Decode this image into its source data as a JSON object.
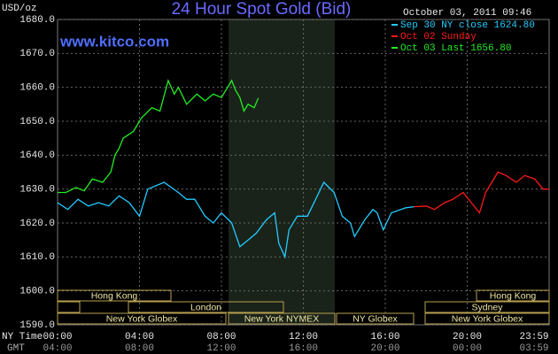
{
  "chart_data": {
    "type": "line",
    "title": "24 Hour Spot Gold (Bid)",
    "y_axis_label": "USD/oz",
    "date": "October 03, 2011 09:46",
    "watermark": "www.kitco.com",
    "x_axis_label": "NY Time",
    "x2_axis_label": "GMT",
    "xlim": [
      0,
      24
    ],
    "xticks": [
      {
        "value": 0,
        "label": "00:00"
      },
      {
        "value": 4,
        "label": "04:00"
      },
      {
        "value": 8,
        "label": "08:00"
      },
      {
        "value": 12,
        "label": "12:00"
      },
      {
        "value": 16,
        "label": "16:00"
      },
      {
        "value": 20,
        "label": "20:00"
      },
      {
        "value": 23.98,
        "label": "23:59"
      }
    ],
    "gmt_labels": [
      "04:00",
      "08:00",
      "12:00",
      "16:00",
      "20:00",
      "00:00",
      "03:59"
    ],
    "ylim": [
      1590,
      1680
    ],
    "yticks": [
      {
        "value": 1590,
        "label": "1590.0"
      },
      {
        "value": 1600,
        "label": "1600.0"
      },
      {
        "value": 1610,
        "label": "1610.0"
      },
      {
        "value": 1620,
        "label": "1620.0"
      },
      {
        "value": 1630,
        "label": "1630.0"
      },
      {
        "value": 1640,
        "label": "1640.0"
      },
      {
        "value": 1650,
        "label": "1650.0"
      },
      {
        "value": 1660,
        "label": "1660.0"
      },
      {
        "value": 1670,
        "label": "1670.0"
      },
      {
        "value": 1680,
        "label": "1680.0"
      }
    ],
    "grid": true,
    "legend": "top-right",
    "series": [
      {
        "name": "Sep 30 NY close 1624.80",
        "color": "#22ccff",
        "x": [
          0,
          0.5,
          1,
          1.5,
          2,
          2.5,
          3,
          3.5,
          4,
          4.4,
          5.2,
          5.9,
          6.3,
          6.7,
          7.2,
          7.6,
          8,
          8.5,
          8.9,
          9.3,
          9.7,
          10.2,
          10.6,
          10.8,
          11.1,
          11.3,
          11.7,
          12.2,
          12.6,
          13,
          13.5,
          13.9,
          14.3,
          14.5,
          15,
          15.4,
          15.6,
          15.9,
          16.3,
          17,
          17.4
        ],
        "values": [
          1626,
          1624,
          1627,
          1625,
          1626,
          1625,
          1628,
          1626,
          1622,
          1630,
          1632,
          1629,
          1627,
          1627,
          1622,
          1620,
          1623,
          1620,
          1613,
          1615,
          1617,
          1621,
          1623,
          1614,
          1610,
          1618,
          1622,
          1622,
          1627,
          1632,
          1629,
          1622,
          1620,
          1616,
          1621,
          1624,
          1623,
          1618,
          1623,
          1624.5,
          1624.8
        ]
      },
      {
        "name": "Oct 02 Sunday",
        "color": "#ff1a1a",
        "x": [
          17.4,
          18,
          18.4,
          18.9,
          19.3,
          19.8,
          20.2,
          20.6,
          20.9,
          21.5,
          21.9,
          22.4,
          22.8,
          23.3,
          23.7,
          24
        ],
        "values": [
          1624.8,
          1625,
          1624,
          1626,
          1627,
          1629,
          1626,
          1623,
          1629,
          1635,
          1634,
          1632,
          1634,
          1633,
          1630,
          1630
        ]
      },
      {
        "name": "Oct 03 Last 1656.80",
        "color": "#22ee22",
        "x": [
          0,
          0.4,
          0.9,
          1.3,
          1.7,
          2.2,
          2.6,
          2.8,
          3,
          3.2,
          3.7,
          4.1,
          4.6,
          5,
          5.4,
          5.7,
          5.9,
          6.3,
          6.8,
          7.2,
          7.6,
          8,
          8.5,
          8.7,
          8.9,
          9.1,
          9.3,
          9.6,
          9.8
        ],
        "values": [
          1629,
          1629,
          1630.5,
          1629.5,
          1633,
          1632,
          1635,
          1640,
          1642,
          1645,
          1647,
          1651,
          1654,
          1653,
          1662,
          1658,
          1660,
          1655,
          1658,
          1656,
          1658,
          1657,
          1662,
          1659,
          1657,
          1653,
          1655,
          1654,
          1656.8
        ]
      }
    ],
    "sessions": [
      "Hong Kong",
      "London",
      "New York Globex",
      "New York NYMEX",
      "NY Globex",
      "Hong Kong",
      "Sydney",
      "New York Globex"
    ]
  }
}
